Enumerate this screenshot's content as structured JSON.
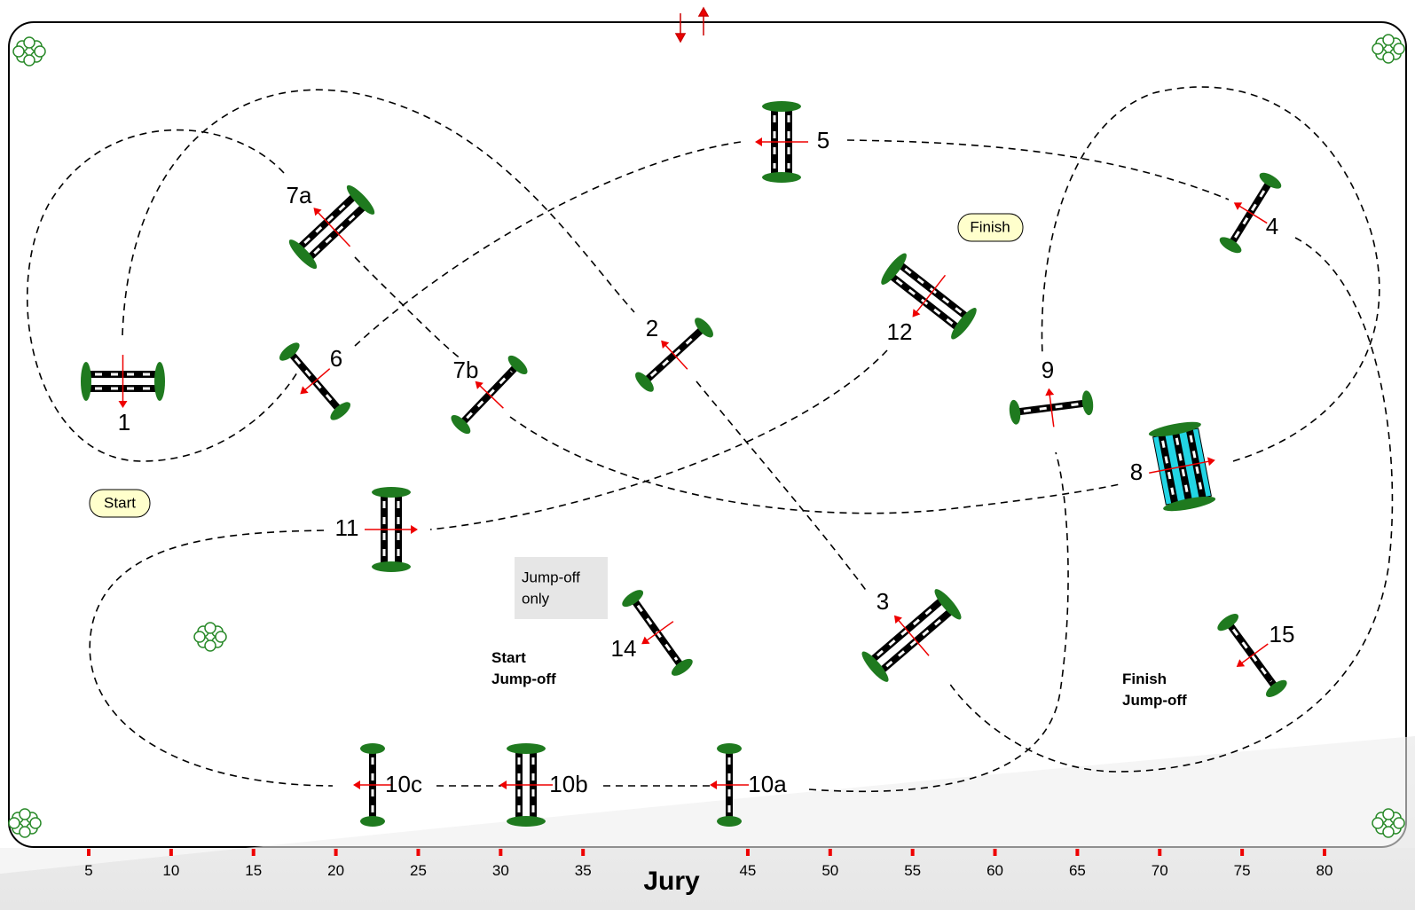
{
  "course": {
    "jumps": [
      "1",
      "2",
      "3",
      "4",
      "5",
      "6",
      "7a",
      "7b",
      "8",
      "9",
      "10a",
      "10b",
      "10c",
      "11",
      "12",
      "14",
      "15"
    ],
    "start": "Start",
    "finish": "Finish",
    "jump_off_only": [
      "Jump-off",
      "only"
    ],
    "start_jump_off": [
      "Start",
      "Jump-off"
    ],
    "finish_jump_off": [
      "Finish",
      "Jump-off"
    ]
  },
  "scale": {
    "ticks": [
      5,
      10,
      15,
      20,
      25,
      30,
      35,
      45,
      50,
      55,
      60,
      65,
      70,
      75,
      80
    ],
    "title": "Jury"
  }
}
